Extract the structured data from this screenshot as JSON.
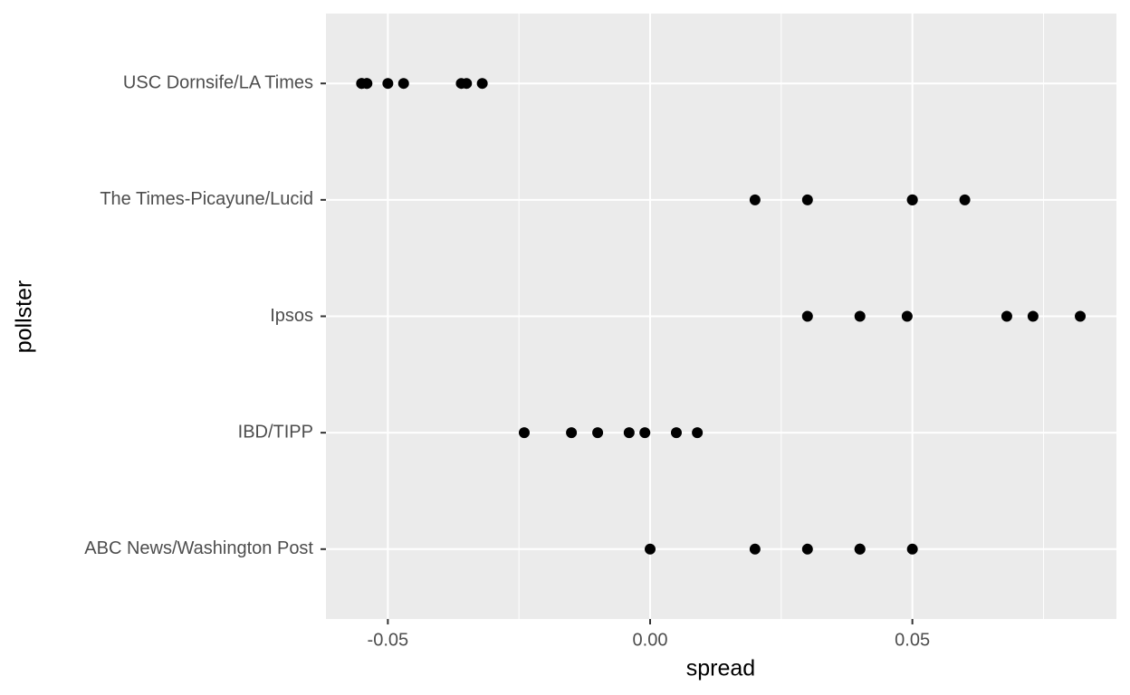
{
  "chart_data": {
    "type": "strip",
    "x_label": "spread",
    "y_label": "pollster",
    "categories": [
      "ABC News/Washington Post",
      "IBD/TIPP",
      "Ipsos",
      "The Times-Picayune/Lucid",
      "USC Dornsife/LA Times"
    ],
    "values": [
      [
        0.0,
        0.02,
        0.03,
        0.04,
        0.04,
        0.05
      ],
      [
        -0.024,
        -0.015,
        -0.01,
        -0.004,
        -0.001,
        0.005,
        0.009
      ],
      [
        0.03,
        0.04,
        0.049,
        0.068,
        0.073,
        0.082
      ],
      [
        0.02,
        0.03,
        0.05,
        0.05,
        0.06
      ],
      [
        -0.055,
        -0.055,
        -0.054,
        -0.054,
        -0.05,
        -0.047,
        -0.036,
        -0.035,
        -0.032
      ]
    ],
    "color": "#000000",
    "xlim": [
      -0.0618,
      0.0889
    ],
    "xticks": [
      -0.05,
      {
        "value": 0,
        "label": "0.00"
      },
      0.05
    ],
    "minor_xticks": [
      -0.025,
      0.025,
      0.075
    ],
    "grid": true
  }
}
